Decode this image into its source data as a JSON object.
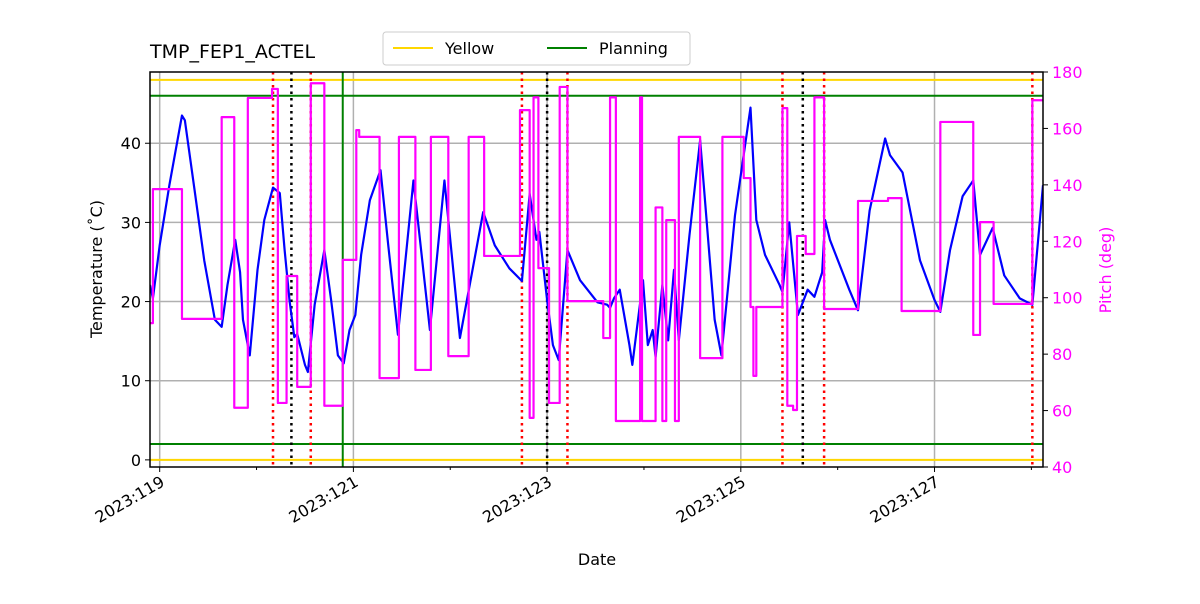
{
  "chart_data": {
    "type": "line",
    "title": "TMP_FEP1_ACTEL",
    "xlabel": "Date",
    "ylabel": "Temperature ($^\\circ$C)",
    "ylabel_display": "Temperature (˚C)",
    "y2label": "Pitch (deg)",
    "xlim": [
      118.9,
      128.12
    ],
    "ylim": [
      -0.9,
      49.0
    ],
    "y2lim": [
      40,
      180
    ],
    "grid": true,
    "legend_position": "top-center",
    "x_ticks": [
      119,
      121,
      123,
      125,
      127
    ],
    "x_tick_labels": [
      "2023:119",
      "2023:121",
      "2023:123",
      "2023:125",
      "2023:127"
    ],
    "x_minor_ticks": [
      120,
      122,
      124,
      126,
      128
    ],
    "y_ticks": [
      0,
      10,
      20,
      30,
      40
    ],
    "y2_ticks": [
      40,
      60,
      80,
      100,
      120,
      140,
      160,
      180
    ],
    "colors": {
      "temperature": "#0000ff",
      "pitch": "#ff00ff",
      "yellow": "#ffd700",
      "planning": "#008000",
      "red_events": "#ff0000",
      "black_events": "#000000"
    },
    "legend": [
      {
        "label": "Yellow",
        "color": "#ffd700"
      },
      {
        "label": "Planning",
        "color": "#008000"
      }
    ],
    "limits": {
      "yellow": [
        0,
        48
      ],
      "planning": [
        2,
        46
      ]
    },
    "vlines_red_dotted": [
      120.17,
      120.56,
      122.74,
      123.21,
      125.43,
      125.86,
      128.01
    ],
    "vlines_black_dotted": [
      120.36,
      123.0,
      125.64
    ],
    "vline_green": 120.89,
    "series": [
      {
        "key": "temperature",
        "axis": "left",
        "style": "line",
        "points": [
          [
            118.9,
            22.1
          ],
          [
            118.93,
            20.4
          ],
          [
            119.0,
            27.1
          ],
          [
            119.1,
            34.7
          ],
          [
            119.23,
            43.5
          ],
          [
            119.26,
            42.9
          ],
          [
            119.36,
            34.1
          ],
          [
            119.46,
            25.2
          ],
          [
            119.57,
            17.7
          ],
          [
            119.64,
            16.8
          ],
          [
            119.7,
            22.1
          ],
          [
            119.78,
            27.8
          ],
          [
            119.83,
            23.7
          ],
          [
            119.86,
            17.7
          ],
          [
            119.93,
            13.2
          ],
          [
            120.01,
            24.0
          ],
          [
            120.08,
            30.3
          ],
          [
            120.17,
            34.4
          ],
          [
            120.24,
            33.7
          ],
          [
            120.29,
            26.5
          ],
          [
            120.34,
            20.2
          ],
          [
            120.39,
            15.5
          ],
          [
            120.42,
            15.9
          ],
          [
            120.5,
            12.0
          ],
          [
            120.53,
            11.1
          ],
          [
            120.6,
            19.6
          ],
          [
            120.7,
            26.5
          ],
          [
            120.77,
            20.2
          ],
          [
            120.84,
            13.2
          ],
          [
            120.9,
            12.2
          ],
          [
            120.96,
            16.4
          ],
          [
            121.02,
            18.3
          ],
          [
            121.08,
            25.9
          ],
          [
            121.17,
            32.8
          ],
          [
            121.28,
            36.6
          ],
          [
            121.36,
            27.1
          ],
          [
            121.46,
            15.8
          ],
          [
            121.62,
            35.3
          ],
          [
            121.79,
            16.4
          ],
          [
            121.94,
            35.3
          ],
          [
            122.1,
            15.4
          ],
          [
            122.34,
            31.3
          ],
          [
            122.46,
            27.1
          ],
          [
            122.61,
            24.2
          ],
          [
            122.74,
            22.6
          ],
          [
            122.82,
            33.6
          ],
          [
            122.89,
            27.8
          ],
          [
            122.92,
            28.8
          ],
          [
            123.0,
            20.2
          ],
          [
            123.06,
            14.5
          ],
          [
            123.12,
            12.6
          ],
          [
            123.21,
            26.5
          ],
          [
            123.34,
            22.7
          ],
          [
            123.52,
            19.9
          ],
          [
            123.62,
            19.6
          ],
          [
            123.65,
            19.2
          ],
          [
            123.69,
            20.4
          ],
          [
            123.75,
            21.5
          ],
          [
            123.85,
            14.5
          ],
          [
            123.88,
            12.0
          ],
          [
            123.99,
            22.7
          ],
          [
            124.04,
            14.5
          ],
          [
            124.09,
            16.4
          ],
          [
            124.12,
            13.0
          ],
          [
            124.19,
            22.1
          ],
          [
            124.25,
            15.1
          ],
          [
            124.31,
            24.0
          ],
          [
            124.36,
            15.1
          ],
          [
            124.47,
            28.4
          ],
          [
            124.58,
            40.4
          ],
          [
            124.68,
            25.2
          ],
          [
            124.73,
            17.7
          ],
          [
            124.8,
            13.2
          ],
          [
            124.94,
            30.9
          ],
          [
            125.1,
            44.5
          ],
          [
            125.16,
            30.3
          ],
          [
            125.25,
            25.9
          ],
          [
            125.4,
            22.1
          ],
          [
            125.43,
            21.2
          ],
          [
            125.5,
            30.0
          ],
          [
            125.59,
            18.3
          ],
          [
            125.69,
            21.5
          ],
          [
            125.76,
            20.6
          ],
          [
            125.84,
            23.7
          ],
          [
            125.87,
            30.3
          ],
          [
            125.92,
            27.8
          ],
          [
            126.12,
            21.5
          ],
          [
            126.21,
            18.9
          ],
          [
            126.33,
            31.5
          ],
          [
            126.49,
            40.6
          ],
          [
            126.54,
            38.5
          ],
          [
            126.67,
            36.3
          ],
          [
            126.85,
            25.2
          ],
          [
            127.0,
            20.2
          ],
          [
            127.06,
            18.7
          ],
          [
            127.16,
            26.5
          ],
          [
            127.29,
            33.3
          ],
          [
            127.4,
            35.3
          ],
          [
            127.47,
            25.9
          ],
          [
            127.6,
            29.3
          ],
          [
            127.72,
            23.3
          ],
          [
            127.88,
            20.4
          ],
          [
            128.01,
            19.6
          ],
          [
            128.12,
            34.7
          ]
        ]
      },
      {
        "key": "pitch",
        "axis": "right",
        "style": "step-after",
        "points": [
          [
            118.9,
            91
          ],
          [
            118.93,
            138.5
          ],
          [
            119.23,
            92.5
          ],
          [
            119.64,
            164
          ],
          [
            119.77,
            61
          ],
          [
            119.91,
            170.8
          ],
          [
            120.16,
            174
          ],
          [
            120.22,
            62.7
          ],
          [
            120.31,
            107.7
          ],
          [
            120.42,
            68.4
          ],
          [
            120.56,
            176
          ],
          [
            120.7,
            61.7
          ],
          [
            120.89,
            113.4
          ],
          [
            121.03,
            159.4
          ],
          [
            121.06,
            157
          ],
          [
            121.27,
            71.5
          ],
          [
            121.47,
            157
          ],
          [
            121.64,
            74.4
          ],
          [
            121.8,
            157
          ],
          [
            121.98,
            79.3
          ],
          [
            122.19,
            157
          ],
          [
            122.35,
            114.8
          ],
          [
            122.72,
            166.5
          ],
          [
            122.82,
            57.4
          ],
          [
            122.86,
            171
          ],
          [
            122.91,
            110.5
          ],
          [
            123.02,
            62.7
          ],
          [
            123.13,
            174.7
          ],
          [
            123.21,
            98.8
          ],
          [
            123.58,
            85.7
          ],
          [
            123.65,
            171
          ],
          [
            123.71,
            56.3
          ],
          [
            123.96,
            171
          ],
          [
            123.98,
            56.3
          ],
          [
            124.12,
            132
          ],
          [
            124.19,
            56.3
          ],
          [
            124.23,
            127.5
          ],
          [
            124.32,
            56.3
          ],
          [
            124.36,
            157
          ],
          [
            124.58,
            78.6
          ],
          [
            124.81,
            157
          ],
          [
            125.03,
            142.4
          ],
          [
            125.1,
            96.7
          ],
          [
            125.13,
            72.3
          ],
          [
            125.16,
            96.7
          ],
          [
            125.43,
            167.2
          ],
          [
            125.48,
            61.7
          ],
          [
            125.54,
            60.2
          ],
          [
            125.58,
            121.9
          ],
          [
            125.67,
            115.5
          ],
          [
            125.76,
            171
          ],
          [
            125.86,
            96
          ],
          [
            126.21,
            134.3
          ],
          [
            126.52,
            135.3
          ],
          [
            126.66,
            95.3
          ],
          [
            127.06,
            162.3
          ],
          [
            127.4,
            86.8
          ],
          [
            127.47,
            126.8
          ],
          [
            127.61,
            97.8
          ],
          [
            128.01,
            170
          ],
          [
            128.12,
            170
          ]
        ]
      }
    ]
  }
}
